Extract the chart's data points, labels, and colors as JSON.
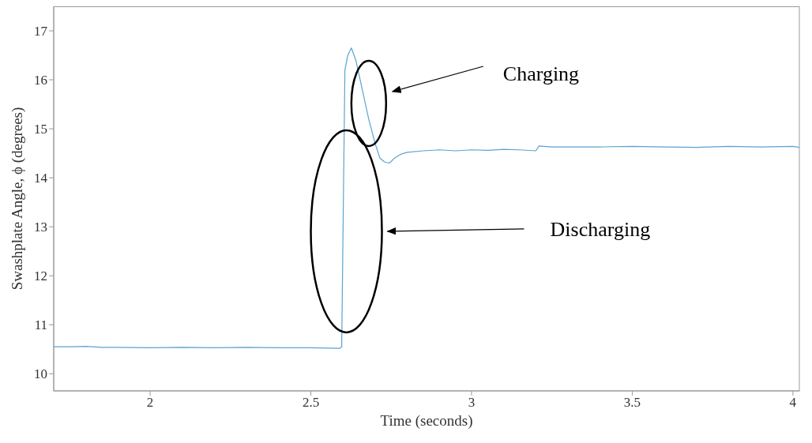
{
  "chart_data": {
    "type": "line",
    "xlabel": "Time (seconds)",
    "ylabel": "Swashplate Angle, ϕ (degrees)",
    "xlim": [
      1.7,
      4.02
    ],
    "xticks": [
      2,
      2.5,
      3,
      3.5,
      4
    ],
    "ylim": [
      9.65,
      17.5
    ],
    "yticks": [
      10,
      11,
      12,
      13,
      14,
      15,
      16,
      17
    ],
    "grid": false,
    "marker": "none",
    "line_style": "solid",
    "series": [
      {
        "color": "#5ba3d0",
        "x": [
          1.7,
          1.75,
          1.8,
          1.85,
          1.9,
          2.0,
          2.1,
          2.2,
          2.3,
          2.4,
          2.5,
          2.59,
          2.596,
          2.606,
          2.615,
          2.626,
          2.64,
          2.66,
          2.68,
          2.7,
          2.715,
          2.73,
          2.745,
          2.76,
          2.78,
          2.8,
          2.85,
          2.9,
          2.95,
          3.0,
          3.05,
          3.1,
          3.15,
          3.2,
          3.21,
          3.25,
          3.3,
          3.4,
          3.5,
          3.6,
          3.7,
          3.8,
          3.9,
          4.0,
          4.02
        ],
        "values": [
          10.55,
          10.55,
          10.56,
          10.54,
          10.54,
          10.53,
          10.54,
          10.53,
          10.54,
          10.53,
          10.53,
          10.52,
          10.55,
          16.2,
          16.5,
          16.65,
          16.4,
          15.8,
          15.2,
          14.7,
          14.4,
          14.32,
          14.3,
          14.4,
          14.48,
          14.52,
          14.55,
          14.57,
          14.55,
          14.57,
          14.56,
          14.58,
          14.57,
          14.55,
          14.65,
          14.63,
          14.63,
          14.63,
          14.64,
          14.63,
          14.62,
          14.64,
          14.63,
          14.64,
          14.62
        ]
      }
    ],
    "annotations": [
      "Charging",
      "Discharging"
    ]
  }
}
